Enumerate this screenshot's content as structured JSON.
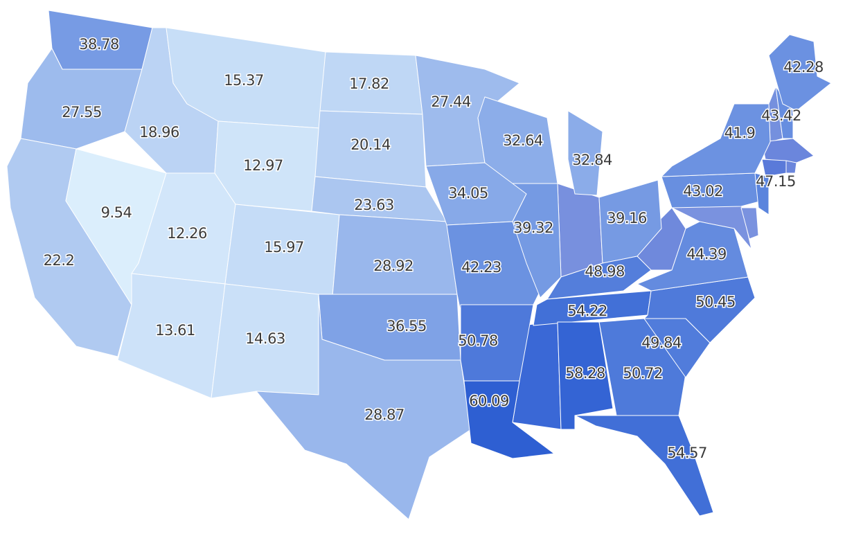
{
  "chart_data": {
    "type": "choropleth",
    "values": [
      38.78,
      27.55,
      22.2,
      9.54,
      18.96,
      15.37,
      12.97,
      12.26,
      15.97,
      13.61,
      14.63,
      17.82,
      20.14,
      23.63,
      28.92,
      36.55,
      28.87,
      27.44,
      34.05,
      42.23,
      50.78,
      60.09,
      32.64,
      39.32,
      32.84,
      39.16,
      48.98,
      54.22,
      58.28,
      50.72,
      54.57,
      49.84,
      50.45,
      44.39,
      43.02,
      41.9,
      47.15,
      43.42,
      42.28
    ],
    "color_range": [
      "#dbeefc",
      "#2e5fd2"
    ]
  }
}
